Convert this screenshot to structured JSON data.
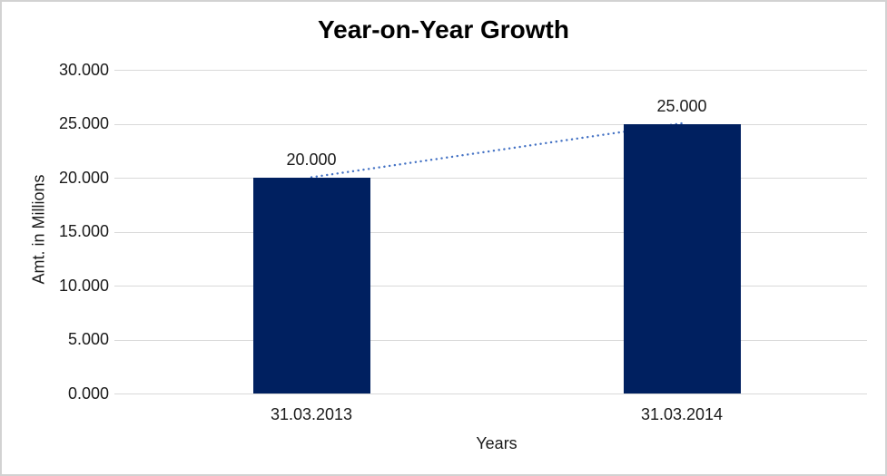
{
  "chart_data": {
    "type": "bar",
    "title": "Year-on-Year Growth",
    "xlabel": "Years",
    "ylabel": "Amt. in Millions",
    "categories": [
      "31.03.2013",
      "31.03.2014"
    ],
    "series": [
      {
        "name": "Amt. in Millions",
        "values": [
          20,
          25
        ],
        "data_labels": [
          "20.000",
          "25.000"
        ]
      }
    ],
    "ylim": [
      0,
      30
    ],
    "yticks": [
      {
        "value": 0,
        "label": "0.000"
      },
      {
        "value": 5,
        "label": "5.000"
      },
      {
        "value": 10,
        "label": "10.000"
      },
      {
        "value": 15,
        "label": "15.000"
      },
      {
        "value": 20,
        "label": "20.000"
      },
      {
        "value": 25,
        "label": "25.000"
      },
      {
        "value": 30,
        "label": "30.000"
      }
    ],
    "grid": "horizontal",
    "legend": "none",
    "trendline": {
      "type": "linear",
      "style": "dotted",
      "from": "31.03.2013",
      "to": "31.03.2014"
    }
  },
  "colors": {
    "bar": "#002060",
    "trendline": "#4472C4",
    "gridline": "#D9D9D9",
    "axis_text": "#1A1A1A",
    "border": "#D2D2D2",
    "background": "#FFFFFF"
  }
}
